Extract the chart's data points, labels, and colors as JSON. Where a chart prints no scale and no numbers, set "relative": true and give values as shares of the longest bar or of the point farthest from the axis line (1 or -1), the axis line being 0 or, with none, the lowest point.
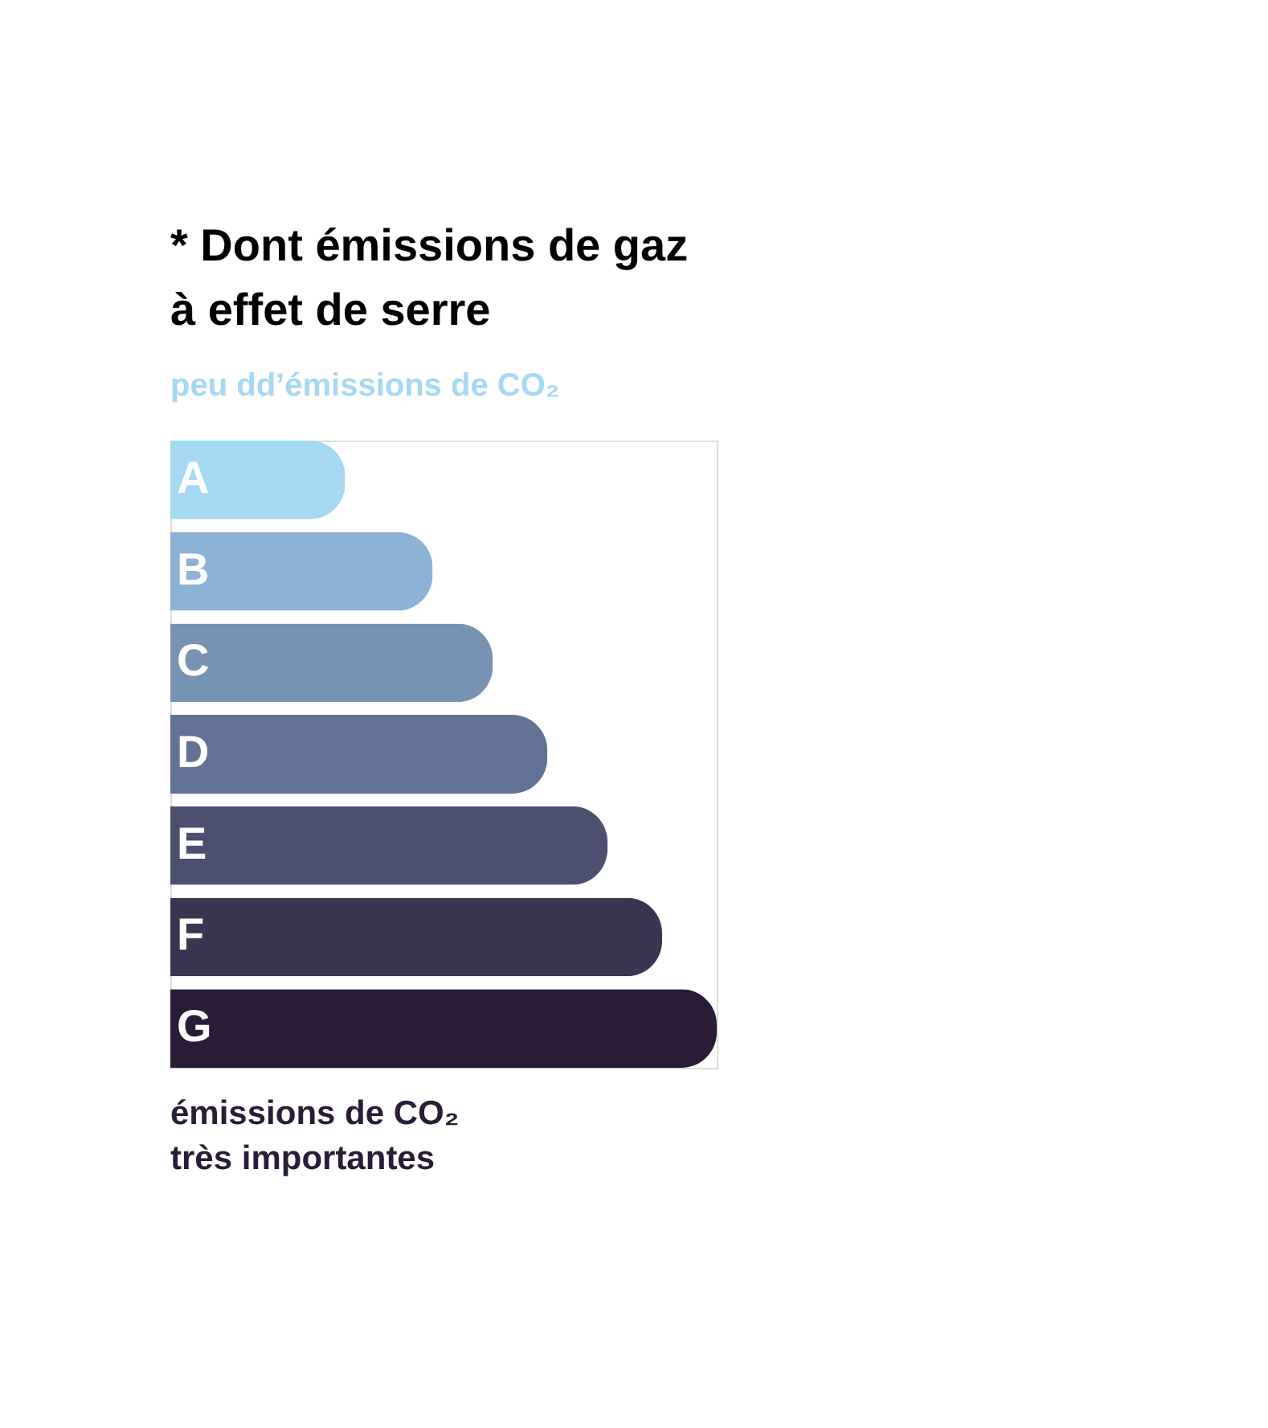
{
  "chart_data": {
    "type": "bar",
    "orientation": "horizontal",
    "relative": true,
    "title": "* Dont émissions de gaz\nà effet de serre",
    "subtitle": "peu dd’émissions de CO₂",
    "categories": [
      "A",
      "B",
      "C",
      "D",
      "E",
      "F",
      "G"
    ],
    "values": [
      0.32,
      0.48,
      0.59,
      0.69,
      0.8,
      0.9,
      1
    ],
    "colors": [
      "#a5d8f3",
      "#8cb3d5",
      "#7793b4",
      "#617295",
      "#4c4f6e",
      "#393652",
      "#2a1c36"
    ],
    "annotations": [
      "émissions de CO₂\ntrès importantes"
    ]
  }
}
